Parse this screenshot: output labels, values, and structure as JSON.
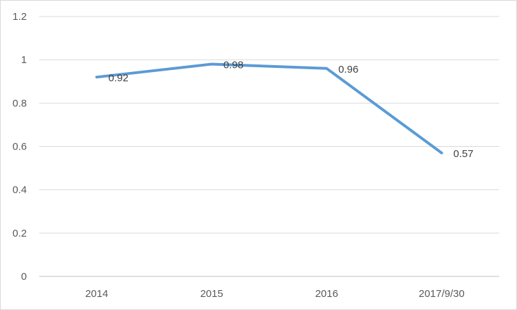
{
  "chart_data": {
    "type": "line",
    "title": "",
    "xlabel": "",
    "ylabel": "",
    "categories": [
      "2014",
      "2015",
      "2016",
      "2017/9/30"
    ],
    "series": [
      {
        "values": [
          0.92,
          0.98,
          0.96,
          0.57
        ],
        "color": "#5b9bd5"
      }
    ],
    "data_labels": [
      "0.92",
      "0.98",
      "0.96",
      "0.57"
    ],
    "y_ticks": [
      "0",
      "0.2",
      "0.4",
      "0.6",
      "0.8",
      "1",
      "1.2"
    ],
    "ylim": [
      0,
      1.2
    ],
    "grid": true,
    "legend": "none"
  }
}
